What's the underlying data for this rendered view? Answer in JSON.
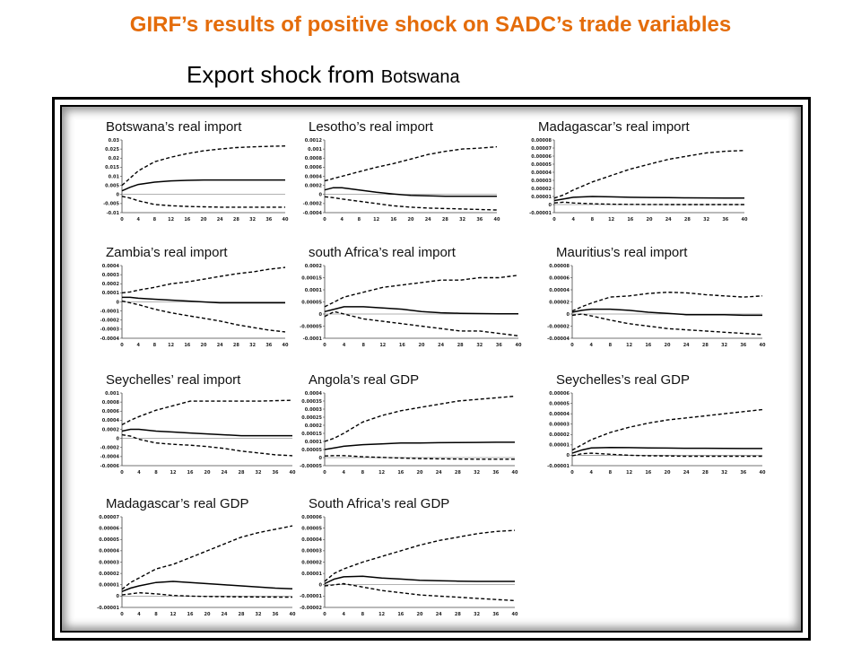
{
  "slide": {
    "title": "GIRF’s results of positive shock on SADC’s  trade variables",
    "subtitle_main": "Export shock from ",
    "subtitle_country": "Botswana"
  },
  "chart_data": [
    {
      "type": "line",
      "title": "Botswana’s real import",
      "ylim": [
        -0.01,
        0.03
      ],
      "yticks": [
        "0.03",
        "0.025",
        "0.02",
        "0.015",
        "0.01",
        "0.005",
        "0",
        "-0.005",
        "-0.01"
      ],
      "xticks": [
        "0",
        "4",
        "8",
        "12",
        "16",
        "20",
        "24",
        "28",
        "32",
        "36",
        "40"
      ],
      "x": [
        0,
        2,
        4,
        8,
        12,
        16,
        20,
        24,
        28,
        32,
        36,
        40
      ],
      "series": [
        {
          "style": "solid",
          "values": [
            0.002,
            0.004,
            0.0055,
            0.0068,
            0.0075,
            0.0078,
            0.008,
            0.008,
            0.008,
            0.008,
            0.008,
            0.008
          ]
        },
        {
          "style": "dashed",
          "values": [
            0.005,
            0.009,
            0.013,
            0.018,
            0.0205,
            0.0225,
            0.024,
            0.025,
            0.0258,
            0.0262,
            0.0265,
            0.0267
          ]
        },
        {
          "style": "dashed",
          "values": [
            -0.001,
            -0.002,
            -0.0035,
            -0.0055,
            -0.0062,
            -0.0066,
            -0.0068,
            -0.007,
            -0.007,
            -0.007,
            -0.007,
            -0.007
          ]
        }
      ]
    },
    {
      "type": "line",
      "title": "Lesotho’s real import",
      "ylim": [
        -0.0004,
        0.0012
      ],
      "yticks": [
        "0.0012",
        "0.001",
        "0.0008",
        "0.0006",
        "0.0004",
        "0.0002",
        "0",
        "-0.0002",
        "-0.0004"
      ],
      "xticks": [
        "0",
        "4",
        "8",
        "12",
        "16",
        "20",
        "24",
        "28",
        "32",
        "36",
        "40"
      ],
      "x": [
        0,
        2,
        4,
        8,
        12,
        16,
        20,
        24,
        28,
        32,
        36,
        40
      ],
      "series": [
        {
          "style": "solid",
          "values": [
            0.0001,
            0.00015,
            0.00015,
            0.0001,
            5e-05,
            1e-05,
            -2e-05,
            -3e-05,
            -4e-05,
            -4e-05,
            -4e-05,
            -4e-05
          ]
        },
        {
          "style": "dashed",
          "values": [
            0.0003,
            0.00035,
            0.0004,
            0.0005,
            0.0006,
            0.00068,
            0.00078,
            0.00088,
            0.00095,
            0.001,
            0.00102,
            0.00105
          ]
        },
        {
          "style": "dashed",
          "values": [
            -5e-05,
            -7e-05,
            -0.0001,
            -0.00015,
            -0.0002,
            -0.00025,
            -0.00028,
            -0.0003,
            -0.00031,
            -0.00032,
            -0.00033,
            -0.00034
          ]
        }
      ]
    },
    {
      "type": "line",
      "title": "Madagascar’s real import",
      "ylim": [
        -1e-05,
        8e-05
      ],
      "yticks": [
        "0.00008",
        "0.00007",
        "0.00006",
        "0.00005",
        "0.00004",
        "0.00003",
        "0.00002",
        "0.00001",
        "0",
        "-0.00001"
      ],
      "xticks": [
        "0",
        "4",
        "8",
        "12",
        "16",
        "20",
        "24",
        "28",
        "32",
        "36",
        "40"
      ],
      "x": [
        0,
        2,
        4,
        8,
        12,
        16,
        20,
        24,
        28,
        32,
        36,
        40
      ],
      "series": [
        {
          "style": "solid",
          "values": [
            5e-06,
            7e-06,
            9e-06,
            1e-05,
            9.5e-06,
            9e-06,
            8.8e-06,
            8.5e-06,
            8.3e-06,
            8.2e-06,
            8e-06,
            8e-06
          ]
        },
        {
          "style": "dashed",
          "values": [
            8e-06,
            1.2e-05,
            1.8e-05,
            2.8e-05,
            3.6e-05,
            4.4e-05,
            5e-05,
            5.6e-05,
            6e-05,
            6.4e-05,
            6.6e-05,
            6.7e-05
          ]
        },
        {
          "style": "dashed",
          "values": [
            2e-06,
            3e-06,
            2e-06,
            1e-06,
            5e-07,
            2e-07,
            1e-07,
            0,
            0,
            0,
            0,
            0
          ]
        }
      ]
    },
    {
      "type": "line",
      "title": "Zambia’s real import",
      "ylim": [
        -0.0004,
        0.0004
      ],
      "yticks": [
        "0.0004",
        "0.0003",
        "0.0002",
        "0.0001",
        "0",
        "-0.0001",
        "-0.0002",
        "-0.0003",
        "-0.0004"
      ],
      "xticks": [
        "0",
        "4",
        "8",
        "12",
        "16",
        "20",
        "24",
        "28",
        "32",
        "36",
        "40"
      ],
      "x": [
        0,
        2,
        4,
        8,
        12,
        16,
        20,
        24,
        28,
        32,
        36,
        40
      ],
      "series": [
        {
          "style": "solid",
          "values": [
            5e-05,
            5e-05,
            4e-05,
            3e-05,
            2e-05,
            1e-05,
            0,
            -1e-05,
            -1e-05,
            -1e-05,
            -1e-05,
            -1e-05
          ]
        },
        {
          "style": "dashed",
          "values": [
            0.0001,
            0.00011,
            0.00013,
            0.00016,
            0.0002,
            0.00022,
            0.00025,
            0.00028,
            0.00031,
            0.00033,
            0.00036,
            0.00038
          ]
        },
        {
          "style": "dashed",
          "values": [
            1e-05,
            -1e-05,
            -3e-05,
            -8e-05,
            -0.00012,
            -0.00015,
            -0.00018,
            -0.00021,
            -0.00025,
            -0.00028,
            -0.00031,
            -0.00033
          ]
        }
      ]
    },
    {
      "type": "line",
      "title": "south Africa’s real import",
      "ylim": [
        -0.0001,
        0.0002
      ],
      "yticks": [
        "0.0002",
        "0.00015",
        "0.0001",
        "0.00005",
        "0",
        "-0.00005",
        "-0.0001"
      ],
      "xticks": [
        "0",
        "4",
        "8",
        "12",
        "16",
        "20",
        "24",
        "28",
        "32",
        "36",
        "40"
      ],
      "x": [
        0,
        2,
        4,
        8,
        12,
        16,
        20,
        24,
        28,
        32,
        36,
        40
      ],
      "series": [
        {
          "style": "solid",
          "values": [
            1e-05,
            2e-05,
            3e-05,
            3e-05,
            2.5e-05,
            2e-05,
            1e-05,
            5e-06,
            3e-06,
            2e-06,
            1e-06,
            1e-06
          ]
        },
        {
          "style": "dashed",
          "values": [
            3e-05,
            5e-05,
            7e-05,
            9e-05,
            0.00011,
            0.00012,
            0.00013,
            0.00014,
            0.00014,
            0.00015,
            0.00015,
            0.00016
          ]
        },
        {
          "style": "dashed",
          "values": [
            -1e-05,
            1e-05,
            0,
            -2e-05,
            -3e-05,
            -4e-05,
            -5e-05,
            -6e-05,
            -7e-05,
            -7e-05,
            -8e-05,
            -9e-05
          ]
        }
      ]
    },
    {
      "type": "line",
      "title": "Mauritius’s real import",
      "ylim": [
        -4e-05,
        8e-05
      ],
      "yticks": [
        "0.00008",
        "0.00006",
        "0.00004",
        "0.00002",
        "0",
        "-0.00002",
        "-0.00004"
      ],
      "xticks": [
        "0",
        "4",
        "8",
        "12",
        "16",
        "20",
        "24",
        "28",
        "32",
        "36",
        "40"
      ],
      "x": [
        0,
        2,
        4,
        8,
        12,
        16,
        20,
        24,
        28,
        32,
        36,
        40
      ],
      "series": [
        {
          "style": "solid",
          "values": [
            3e-06,
            6e-06,
            8e-06,
            8e-06,
            6e-06,
            3e-06,
            1e-06,
            -1e-06,
            -1e-06,
            -1e-06,
            -2e-06,
            -2e-06
          ]
        },
        {
          "style": "dashed",
          "values": [
            5e-06,
            1.2e-05,
            1.8e-05,
            2.8e-05,
            3e-05,
            3.4e-05,
            3.6e-05,
            3.5e-05,
            3.2e-05,
            3e-05,
            2.8e-05,
            3e-05
          ]
        },
        {
          "style": "dashed",
          "values": [
            -2e-06,
            0,
            -3e-06,
            -1e-05,
            -1.6e-05,
            -2e-05,
            -2.4e-05,
            -2.6e-05,
            -2.8e-05,
            -3e-05,
            -3.2e-05,
            -3.4e-05
          ]
        }
      ]
    },
    {
      "type": "line",
      "title": "Seychelles’ real import",
      "ylim": [
        -0.0006,
        0.001
      ],
      "yticks": [
        "0.001",
        "0.0008",
        "0.0006",
        "0.0004",
        "0.0002",
        "0",
        "-0.0002",
        "-0.0004",
        "-0.0006"
      ],
      "xticks": [
        "0",
        "4",
        "8",
        "12",
        "16",
        "20",
        "24",
        "28",
        "32",
        "36",
        "40"
      ],
      "x": [
        0,
        2,
        4,
        8,
        12,
        16,
        20,
        24,
        28,
        32,
        36,
        40
      ],
      "series": [
        {
          "style": "solid",
          "values": [
            0.00016,
            0.0002,
            0.0002,
            0.00016,
            0.00014,
            0.00012,
            0.0001,
            8e-05,
            6e-05,
            6e-05,
            6e-05,
            6e-05
          ]
        },
        {
          "style": "dashed",
          "values": [
            0.0003,
            0.0004,
            0.00048,
            0.00062,
            0.00072,
            0.00082,
            0.00082,
            0.00082,
            0.00082,
            0.00082,
            0.00083,
            0.00084
          ]
        },
        {
          "style": "dashed",
          "values": [
            8e-05,
            5e-05,
            -2e-05,
            -0.0001,
            -0.00013,
            -0.00015,
            -0.00018,
            -0.00022,
            -0.00028,
            -0.00032,
            -0.00036,
            -0.00038
          ]
        }
      ]
    },
    {
      "type": "line",
      "title": "Angola’s real GDP",
      "ylim": [
        -5e-05,
        0.0004
      ],
      "yticks": [
        "0.0004",
        "0.00035",
        "0.0003",
        "0.00025",
        "0.0002",
        "0.00015",
        "0.0001",
        "0.00005",
        "0",
        "-0.00005"
      ],
      "xticks": [
        "0",
        "4",
        "8",
        "12",
        "16",
        "20",
        "24",
        "28",
        "32",
        "36",
        "40"
      ],
      "x": [
        0,
        2,
        4,
        8,
        12,
        16,
        20,
        24,
        28,
        32,
        36,
        40
      ],
      "series": [
        {
          "style": "solid",
          "values": [
            5e-05,
            6e-05,
            7e-05,
            8e-05,
            8.5e-05,
            9e-05,
            9e-05,
            9.2e-05,
            9.3e-05,
            9.4e-05,
            9.5e-05,
            9.5e-05
          ]
        },
        {
          "style": "dashed",
          "values": [
            0.0001,
            0.00012,
            0.00015,
            0.00022,
            0.00026,
            0.00029,
            0.00031,
            0.00033,
            0.00035,
            0.00036,
            0.00037,
            0.00038
          ]
        },
        {
          "style": "dashed",
          "values": [
            1e-05,
            1.2e-05,
            1.2e-05,
            5e-06,
            1e-06,
            -3e-06,
            -6e-06,
            -8e-06,
            -9e-06,
            -1e-05,
            -1e-05,
            -1e-05
          ]
        }
      ]
    },
    {
      "type": "line",
      "title": "Seychelles’s real GDP",
      "ylim": [
        -1e-05,
        6e-05
      ],
      "yticks": [
        "0.00006",
        "0.00005",
        "0.00004",
        "0.00003",
        "0.00002",
        "0.00001",
        "0",
        "-0.00001"
      ],
      "xticks": [
        "0",
        "4",
        "8",
        "12",
        "16",
        "20",
        "24",
        "28",
        "32",
        "36",
        "40"
      ],
      "x": [
        0,
        2,
        4,
        8,
        12,
        16,
        20,
        24,
        28,
        32,
        36,
        40
      ],
      "series": [
        {
          "style": "solid",
          "values": [
            2e-06,
            5e-06,
            7e-06,
            7.5e-06,
            7.4e-06,
            7e-06,
            6.9e-06,
            6.8e-06,
            6.8e-06,
            6.6e-06,
            6.5e-06,
            6.5e-06
          ]
        },
        {
          "style": "dashed",
          "values": [
            5e-06,
            1e-05,
            1.5e-05,
            2.2e-05,
            2.7e-05,
            3.1e-05,
            3.4e-05,
            3.6e-05,
            3.8e-05,
            4e-05,
            4.2e-05,
            4.4e-05
          ]
        },
        {
          "style": "dashed",
          "values": [
            -5e-07,
            1.5e-06,
            2e-06,
            1e-06,
            0,
            -5e-07,
            -7e-07,
            -1e-06,
            -1e-06,
            -1e-06,
            -1e-06,
            -1e-06
          ]
        }
      ]
    },
    {
      "type": "line",
      "title": "Madagascar’s real GDP",
      "ylim": [
        -1e-05,
        7e-05
      ],
      "yticks": [
        "0.00007",
        "0.00006",
        "0.00005",
        "0.00004",
        "0.00003",
        "0.00002",
        "0.00001",
        "0",
        "-0.00001"
      ],
      "xticks": [
        "0",
        "4",
        "8",
        "12",
        "16",
        "20",
        "24",
        "28",
        "32",
        "36",
        "40"
      ],
      "x": [
        0,
        2,
        4,
        8,
        12,
        16,
        20,
        24,
        28,
        32,
        36,
        40
      ],
      "series": [
        {
          "style": "solid",
          "values": [
            4e-06,
            7e-06,
            9e-06,
            1.2e-05,
            1.3e-05,
            1.2e-05,
            1.1e-05,
            1e-05,
            9e-06,
            8e-06,
            7e-06,
            6.5e-06
          ]
        },
        {
          "style": "dashed",
          "values": [
            6e-06,
            1.2e-05,
            1.6e-05,
            2.4e-05,
            2.8e-05,
            3.4e-05,
            4e-05,
            4.6e-05,
            5.2e-05,
            5.6e-05,
            5.9e-05,
            6.2e-05
          ]
        },
        {
          "style": "dashed",
          "values": [
            1e-06,
            2e-06,
            3e-06,
            2e-06,
            5e-07,
            0,
            -3e-07,
            -5e-07,
            -7e-07,
            -8e-07,
            -9e-07,
            -1e-06
          ]
        }
      ]
    },
    {
      "type": "line",
      "title": "South Africa’s real GDP",
      "ylim": [
        -2e-05,
        6e-05
      ],
      "yticks": [
        "0.00006",
        "0.00005",
        "0.00004",
        "0.00003",
        "0.00002",
        "0.00001",
        "0",
        "-0.00001",
        "-0.00002"
      ],
      "xticks": [
        "0",
        "4",
        "8",
        "12",
        "16",
        "20",
        "24",
        "28",
        "32",
        "36",
        "40"
      ],
      "x": [
        0,
        2,
        4,
        8,
        12,
        16,
        20,
        24,
        28,
        32,
        36,
        40
      ],
      "series": [
        {
          "style": "solid",
          "values": [
            1e-06,
            5e-06,
            7e-06,
            7.5e-06,
            6e-06,
            5e-06,
            4e-06,
            3.5e-06,
            3.2e-06,
            3e-06,
            3e-06,
            3e-06
          ]
        },
        {
          "style": "dashed",
          "values": [
            3e-06,
            1e-05,
            1.4e-05,
            2e-05,
            2.5e-05,
            3e-05,
            3.5e-05,
            3.9e-05,
            4.2e-05,
            4.5e-05,
            4.7e-05,
            4.8e-05
          ]
        },
        {
          "style": "dashed",
          "values": [
            -1e-06,
            0,
            1e-06,
            -2e-06,
            -5e-06,
            -7e-06,
            -9e-06,
            -1e-05,
            -1.1e-05,
            -1.2e-05,
            -1.3e-05,
            -1.4e-05
          ]
        }
      ]
    }
  ]
}
